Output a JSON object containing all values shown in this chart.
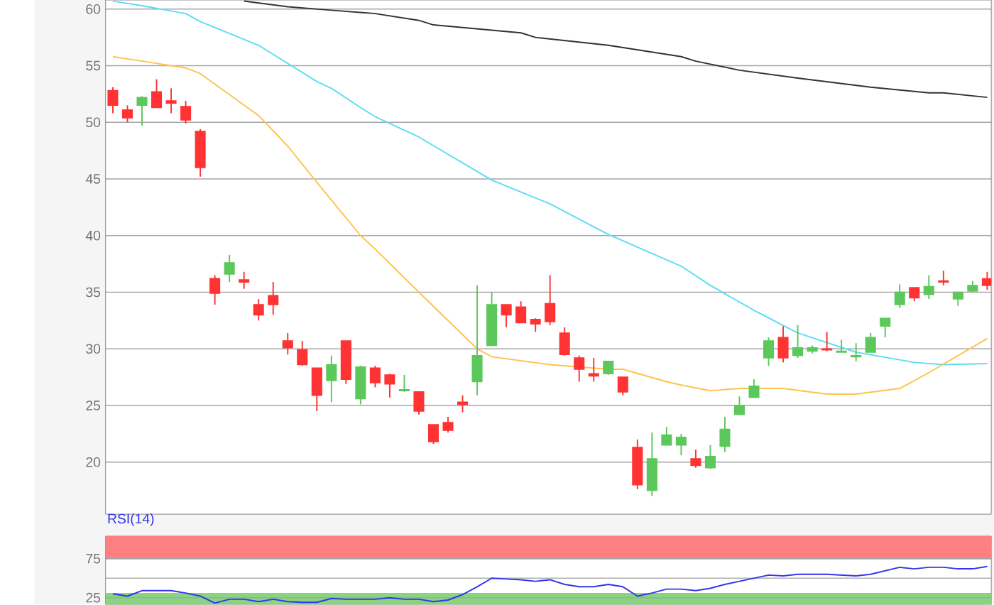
{
  "chart_data": [
    {
      "type": "candlestick",
      "categories": [
        null,
        null,
        null,
        null,
        null,
        null,
        null,
        null,
        null,
        null,
        null,
        null,
        null,
        null,
        null,
        null,
        null,
        null,
        null,
        null,
        null,
        null,
        null,
        null,
        null,
        null,
        null,
        null,
        null,
        null,
        null,
        null,
        null,
        null,
        null,
        null,
        null,
        null,
        null,
        null,
        null,
        null,
        null,
        null,
        null,
        null,
        null,
        null,
        null,
        null,
        null,
        null,
        null,
        null,
        null,
        null,
        null,
        null,
        null,
        null,
        null
      ],
      "ohlc": [
        [
          52.8,
          53.1,
          50.8,
          51.5
        ],
        [
          51.1,
          51.5,
          50.0,
          50.4
        ],
        [
          51.5,
          52.3,
          49.7,
          52.2
        ],
        [
          52.7,
          53.8,
          51.3,
          51.3
        ],
        [
          51.9,
          53.0,
          50.8,
          51.7
        ],
        [
          51.4,
          51.9,
          49.9,
          50.2
        ],
        [
          49.2,
          49.4,
          45.2,
          46.0
        ],
        [
          36.2,
          36.5,
          33.9,
          34.9
        ],
        [
          36.6,
          38.3,
          35.9,
          37.6
        ],
        [
          36.1,
          36.8,
          35.3,
          35.9
        ],
        [
          33.9,
          34.4,
          32.5,
          33.0
        ],
        [
          34.7,
          35.9,
          33.0,
          33.9
        ],
        [
          30.7,
          31.4,
          29.5,
          30.1
        ],
        [
          29.9,
          30.7,
          28.5,
          28.6
        ],
        [
          28.3,
          28.3,
          24.5,
          25.9
        ],
        [
          27.2,
          29.4,
          25.3,
          28.6
        ],
        [
          30.7,
          30.7,
          26.9,
          27.3
        ],
        [
          25.6,
          28.5,
          25.1,
          28.4
        ],
        [
          28.3,
          28.5,
          26.6,
          27.0
        ],
        [
          27.7,
          27.8,
          25.7,
          26.9
        ],
        [
          26.3,
          27.7,
          26.2,
          26.4
        ],
        [
          26.2,
          26.2,
          24.2,
          24.5
        ],
        [
          23.3,
          23.3,
          21.6,
          21.8
        ],
        [
          23.5,
          24.0,
          22.6,
          22.8
        ],
        [
          25.3,
          25.9,
          24.4,
          25.1
        ],
        [
          27.1,
          35.6,
          25.9,
          29.4
        ],
        [
          30.3,
          35.0,
          30.3,
          33.9
        ],
        [
          33.9,
          33.9,
          31.9,
          33.0
        ],
        [
          33.7,
          34.2,
          32.3,
          32.3
        ],
        [
          32.6,
          32.7,
          31.5,
          32.2
        ],
        [
          34.0,
          36.5,
          32.1,
          32.4
        ],
        [
          31.4,
          31.9,
          29.4,
          29.5
        ],
        [
          29.2,
          29.4,
          27.1,
          28.2
        ],
        [
          27.8,
          29.2,
          27.1,
          27.6
        ],
        [
          27.8,
          28.9,
          27.7,
          28.9
        ],
        [
          27.5,
          27.5,
          25.9,
          26.2
        ],
        [
          21.3,
          22.0,
          17.6,
          18.0
        ],
        [
          17.5,
          22.6,
          17.0,
          20.3
        ],
        [
          21.5,
          23.1,
          21.5,
          22.4
        ],
        [
          21.5,
          22.5,
          20.6,
          22.2
        ],
        [
          20.3,
          21.1,
          19.5,
          19.7
        ],
        [
          19.5,
          21.5,
          19.4,
          20.5
        ],
        [
          21.4,
          24.0,
          20.9,
          22.9
        ],
        [
          24.2,
          25.8,
          24.2,
          25.0
        ],
        [
          25.7,
          27.3,
          25.7,
          26.7
        ],
        [
          29.2,
          31.0,
          28.5,
          30.7
        ],
        [
          31.0,
          32.0,
          28.8,
          29.2
        ],
        [
          29.4,
          32.1,
          29.2,
          30.1
        ],
        [
          29.8,
          30.3,
          29.6,
          30.1
        ],
        [
          30.0,
          31.5,
          29.8,
          29.9
        ],
        [
          29.7,
          30.8,
          29.7,
          29.8
        ],
        [
          29.3,
          30.5,
          28.9,
          29.4
        ],
        [
          29.7,
          31.4,
          29.7,
          31.0
        ],
        [
          32.0,
          32.7,
          31.0,
          32.7
        ],
        [
          33.9,
          35.7,
          33.6,
          35.0
        ],
        [
          35.4,
          35.4,
          34.2,
          34.5
        ],
        [
          34.8,
          36.5,
          34.4,
          35.5
        ],
        [
          36.0,
          36.9,
          35.6,
          35.9
        ],
        [
          34.4,
          35.0,
          33.8,
          35.0
        ],
        [
          35.1,
          36.0,
          35.0,
          35.6
        ],
        [
          36.2,
          36.8,
          35.2,
          35.6
        ]
      ],
      "colors": [
        "#ff3333",
        "#ff3333",
        "#5cc85c",
        "#ff3333",
        "#ff3333",
        "#ff3333",
        "#ff3333",
        "#ff3333",
        "#5cc85c",
        "#ff3333",
        "#ff3333",
        "#ff3333",
        "#ff3333",
        "#ff3333",
        "#ff3333",
        "#5cc85c",
        "#ff3333",
        "#5cc85c",
        "#ff3333",
        "#ff3333",
        "#5cc85c",
        "#ff3333",
        "#ff3333",
        "#ff3333",
        "#ff3333",
        "#5cc85c",
        "#5cc85c",
        "#ff3333",
        "#ff3333",
        "#ff3333",
        "#ff3333",
        "#ff3333",
        "#ff3333",
        "#ff3333",
        "#5cc85c",
        "#ff3333",
        "#ff3333",
        "#5cc85c",
        "#5cc85c",
        "#5cc85c",
        "#ff3333",
        "#5cc85c",
        "#5cc85c",
        "#5cc85c",
        "#5cc85c",
        "#5cc85c",
        "#ff3333",
        "#5cc85c",
        "#5cc85c",
        "#ff3333",
        "#5cc85c",
        "#5cc85c",
        "#5cc85c",
        "#5cc85c",
        "#5cc85c",
        "#ff3333",
        "#5cc85c",
        "#ff3333",
        "#5cc85c",
        "#5cc85c",
        "#ff3333"
      ],
      "series": [
        {
          "type": "line",
          "color": "#333333",
          "values": [
            null,
            null,
            null,
            null,
            null,
            null,
            null,
            null,
            null,
            60.7,
            null,
            null,
            60.2,
            null,
            null,
            59.9,
            null,
            null,
            59.6,
            null,
            null,
            59.0,
            58.6,
            null,
            null,
            null,
            null,
            null,
            57.9,
            57.5,
            null,
            null,
            null,
            null,
            56.8,
            null,
            null,
            null,
            null,
            55.8,
            55.4,
            null,
            null,
            54.6,
            null,
            null,
            null,
            53.9,
            null,
            null,
            null,
            null,
            53.1,
            null,
            null,
            null,
            52.6,
            52.6,
            null,
            null,
            52.2
          ]
        },
        {
          "type": "line",
          "color": "#5cdcf5",
          "values": [
            60.7,
            null,
            60.3,
            null,
            null,
            59.6,
            58.9,
            null,
            null,
            null,
            56.8,
            null,
            null,
            null,
            53.6,
            53.0,
            null,
            51.3,
            50.5,
            null,
            null,
            48.7,
            null,
            null,
            null,
            null,
            44.9,
            null,
            null,
            null,
            42.8,
            null,
            null,
            null,
            40.1,
            null,
            null,
            null,
            null,
            37.3,
            null,
            35.6,
            null,
            null,
            33.4,
            null,
            null,
            31.4,
            null,
            null,
            null,
            29.7,
            null,
            null,
            null,
            28.8,
            null,
            28.6,
            null,
            null,
            28.7
          ]
        },
        {
          "type": "line",
          "color": "#ffc24d",
          "values": [
            55.8,
            null,
            55.4,
            null,
            null,
            54.8,
            54.3,
            null,
            null,
            null,
            50.6,
            null,
            47.9,
            null,
            44.7,
            null,
            null,
            40.0,
            38.8,
            null,
            null,
            35.0,
            null,
            null,
            null,
            30.0,
            29.3,
            null,
            null,
            null,
            28.6,
            null,
            null,
            null,
            28.2,
            28.2,
            null,
            null,
            27.1,
            26.8,
            null,
            26.3,
            null,
            26.5,
            null,
            null,
            26.5,
            null,
            null,
            26.0,
            null,
            26.0,
            null,
            null,
            26.5,
            null,
            27.9,
            null,
            null,
            null,
            30.9
          ]
        }
      ],
      "ylim": [
        15.4,
        60.8
      ],
      "yticks": [
        20,
        25,
        30,
        35,
        40,
        45,
        50,
        55,
        60
      ],
      "grid": "y",
      "tick_labels": "y"
    },
    {
      "type": "line",
      "title": "RSI(14)",
      "categories": [
        null,
        null,
        null,
        null,
        null,
        null,
        null,
        null,
        null,
        null,
        null,
        null,
        null,
        null,
        null,
        null,
        null,
        null,
        null,
        null,
        null,
        null,
        null,
        null,
        null,
        null,
        null,
        null,
        null,
        null,
        null,
        null,
        null,
        null,
        null,
        null,
        null,
        null,
        null,
        null,
        null,
        null,
        null,
        null,
        null,
        null,
        null,
        null,
        null,
        null,
        null,
        null,
        null,
        null,
        null,
        null,
        null,
        null,
        null,
        null,
        null
      ],
      "series": [
        {
          "color": "#3333ee",
          "values": [
            30,
            27,
            34,
            null,
            34,
            31,
            27,
            18,
            23,
            23,
            20,
            23,
            20,
            19,
            19,
            24,
            23,
            null,
            23,
            25,
            23,
            23,
            20,
            22,
            29,
            39,
            50,
            49,
            48,
            46,
            48,
            42,
            39,
            39,
            42,
            39,
            27,
            31,
            36,
            36,
            34,
            37,
            42,
            46,
            null,
            54,
            53,
            55,
            null,
            55,
            null,
            53,
            55,
            null,
            64,
            62,
            64,
            64,
            62,
            62,
            65
          ]
        }
      ],
      "ylim": [
        16,
        104
      ],
      "yticks": [
        25,
        75
      ],
      "grid": "y",
      "tick_labels": "y",
      "bands": [
        {
          "axis": "y",
          "from": 75,
          "to": 104,
          "color": "#ff8080"
        },
        {
          "axis": "y",
          "from": 16,
          "to": 31,
          "color": "#88d47f"
        }
      ],
      "ref_lines": [
        {
          "axis": "y",
          "value": 50,
          "color": "#b0b0b0"
        }
      ]
    }
  ]
}
